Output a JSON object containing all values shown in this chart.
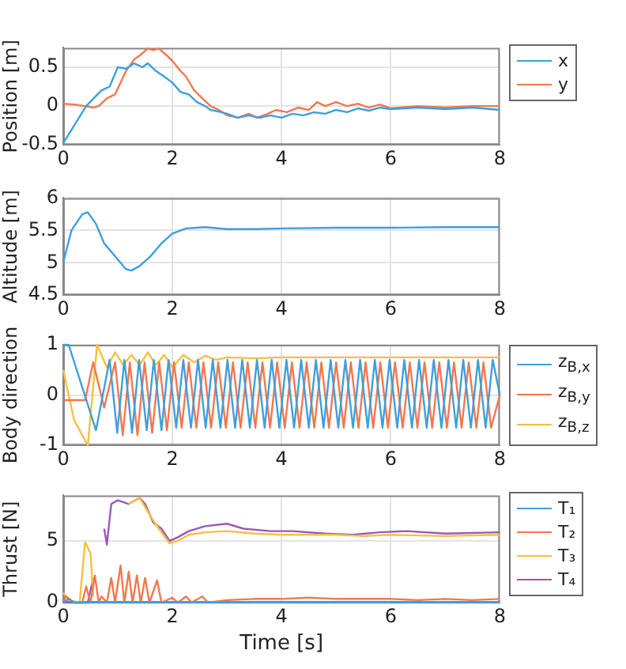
{
  "chart_data": [
    {
      "type": "line",
      "ylabel": "Position [m]",
      "xlim": [
        0,
        8
      ],
      "xticks": [
        0,
        2,
        4,
        6,
        8
      ],
      "ylim": [
        -0.5,
        0.75
      ],
      "yticks": [
        -0.5,
        0,
        0.5
      ],
      "grid": true,
      "legend": "right",
      "series": [
        {
          "name": "x",
          "color": "#3f9fdc",
          "x": [
            0,
            0.42,
            0.7,
            0.85,
            1.0,
            1.15,
            1.3,
            1.45,
            1.55,
            1.7,
            1.85,
            2.0,
            2.15,
            2.3,
            2.45,
            2.6,
            2.7,
            2.9,
            3.0,
            3.2,
            3.4,
            3.6,
            3.8,
            4.0,
            4.2,
            4.4,
            4.6,
            4.8,
            5.0,
            5.2,
            5.4,
            5.6,
            5.8,
            6.0,
            6.5,
            7.0,
            7.5,
            8.0
          ],
          "values": [
            -0.48,
            0,
            0.2,
            0.25,
            0.5,
            0.48,
            0.55,
            0.5,
            0.55,
            0.45,
            0.38,
            0.3,
            0.18,
            0.15,
            0.05,
            0,
            -0.05,
            -0.08,
            -0.1,
            -0.15,
            -0.12,
            -0.15,
            -0.12,
            -0.15,
            -0.1,
            -0.12,
            -0.08,
            -0.1,
            -0.05,
            -0.08,
            -0.03,
            -0.06,
            -0.02,
            -0.04,
            -0.02,
            -0.04,
            -0.02,
            -0.05
          ]
        },
        {
          "name": "y",
          "color": "#f07850",
          "x": [
            0,
            0.2,
            0.4,
            0.55,
            0.65,
            0.8,
            0.95,
            1.05,
            1.15,
            1.3,
            1.4,
            1.55,
            1.65,
            1.75,
            1.9,
            2.0,
            2.15,
            2.25,
            2.4,
            2.55,
            2.7,
            2.85,
            3.0,
            3.2,
            3.4,
            3.55,
            3.75,
            3.9,
            4.1,
            4.3,
            4.5,
            4.65,
            4.8,
            5.0,
            5.2,
            5.4,
            5.6,
            5.8,
            6.0,
            6.5,
            7.0,
            7.5,
            8.0
          ],
          "values": [
            0.03,
            0.02,
            0,
            -0.02,
            0,
            0.1,
            0.15,
            0.3,
            0.45,
            0.6,
            0.65,
            0.74,
            0.72,
            0.74,
            0.65,
            0.58,
            0.45,
            0.38,
            0.2,
            0.1,
            0,
            -0.05,
            -0.12,
            -0.15,
            -0.1,
            -0.15,
            -0.1,
            -0.05,
            -0.08,
            -0.02,
            -0.05,
            0.05,
            0,
            0.05,
            0,
            0.03,
            -0.02,
            0.02,
            -0.03,
            0,
            -0.02,
            0,
            0
          ]
        }
      ]
    },
    {
      "type": "line",
      "ylabel": "Altitude [m]",
      "xlim": [
        0,
        8
      ],
      "xticks": [
        0,
        2,
        4,
        6,
        8
      ],
      "ylim": [
        4.5,
        6
      ],
      "yticks": [
        4.5,
        5,
        5.5,
        6
      ],
      "grid": true,
      "series": [
        {
          "color": "#3f9fdc",
          "x": [
            0,
            0.15,
            0.35,
            0.45,
            0.6,
            0.75,
            0.95,
            1.15,
            1.25,
            1.4,
            1.6,
            1.8,
            2.0,
            2.25,
            2.6,
            3.0,
            3.5,
            4.0,
            5.0,
            6.0,
            7.0,
            8.0
          ],
          "values": [
            5.0,
            5.5,
            5.75,
            5.78,
            5.6,
            5.3,
            5.1,
            4.9,
            4.88,
            4.95,
            5.1,
            5.3,
            5.45,
            5.53,
            5.55,
            5.52,
            5.52,
            5.53,
            5.54,
            5.54,
            5.55,
            5.55
          ]
        }
      ]
    },
    {
      "type": "line",
      "ylabel": "Body direction",
      "xlim": [
        0,
        8
      ],
      "xticks": [
        0,
        2,
        4,
        6,
        8
      ],
      "ylim": [
        -1,
        1
      ],
      "yticks": [
        -1,
        0,
        1
      ],
      "grid": true,
      "legend": "right",
      "series": [
        {
          "name": "z$_{B,x}$",
          "color": "#3f9fdc",
          "x": [
            0,
            0.1,
            0.6,
            0.85,
            0.99,
            1.12,
            1.26,
            1.39,
            1.53,
            1.66,
            1.8,
            1.93,
            2.07,
            2.2,
            2.34,
            2.47,
            2.61,
            2.74,
            2.88,
            3.01,
            3.15,
            3.28,
            3.42,
            3.55,
            3.69,
            3.82,
            3.96,
            4.09,
            4.23,
            4.36,
            4.5,
            4.63,
            4.77,
            4.9,
            5.04,
            5.17,
            5.31,
            5.44,
            5.58,
            5.71,
            5.85,
            5.98,
            6.12,
            6.25,
            6.39,
            6.52,
            6.66,
            6.79,
            6.93,
            7.06,
            7.2,
            7.33,
            7.47,
            7.6,
            7.74,
            7.87,
            8.0
          ],
          "values": [
            1,
            1,
            -0.7,
            0.7,
            -0.75,
            0.7,
            -0.75,
            0.7,
            -0.7,
            0.7,
            -0.7,
            0.7,
            -0.65,
            0.7,
            -0.65,
            0.7,
            -0.65,
            0.7,
            -0.65,
            0.7,
            -0.65,
            0.7,
            -0.65,
            0.7,
            -0.65,
            0.7,
            -0.65,
            0.7,
            -0.65,
            0.7,
            -0.65,
            0.7,
            -0.65,
            0.7,
            -0.65,
            0.7,
            -0.65,
            0.7,
            -0.65,
            0.7,
            -0.65,
            0.7,
            -0.65,
            0.7,
            -0.65,
            0.7,
            -0.65,
            0.7,
            -0.65,
            0.7,
            -0.65,
            0.7,
            -0.65,
            0.7,
            -0.65,
            0.7,
            0
          ]
        },
        {
          "name": "z$_{B,y}$",
          "color": "#f07850",
          "x": [
            0,
            0.4,
            0.55,
            0.75,
            0.95,
            1.09,
            1.22,
            1.36,
            1.49,
            1.63,
            1.76,
            1.9,
            2.03,
            2.17,
            2.3,
            2.44,
            2.57,
            2.71,
            2.84,
            2.98,
            3.11,
            3.25,
            3.38,
            3.52,
            3.65,
            3.79,
            3.92,
            4.06,
            4.19,
            4.33,
            4.46,
            4.6,
            4.73,
            4.87,
            5.0,
            5.14,
            5.27,
            5.41,
            5.54,
            5.68,
            5.81,
            5.95,
            6.08,
            6.22,
            6.35,
            6.49,
            6.62,
            6.76,
            6.89,
            7.03,
            7.16,
            7.3,
            7.43,
            7.57,
            7.7,
            7.84,
            8.0
          ],
          "values": [
            -0.1,
            -0.1,
            0.65,
            -0.25,
            0.65,
            -0.8,
            0.65,
            -0.8,
            0.65,
            -0.75,
            0.65,
            -0.7,
            0.65,
            -0.65,
            0.65,
            -0.65,
            0.65,
            -0.65,
            0.65,
            -0.65,
            0.65,
            -0.65,
            0.65,
            -0.65,
            0.65,
            -0.65,
            0.65,
            -0.65,
            0.65,
            -0.65,
            0.65,
            -0.65,
            0.65,
            -0.65,
            0.65,
            -0.65,
            0.65,
            -0.65,
            0.65,
            -0.65,
            0.65,
            -0.65,
            0.65,
            -0.65,
            0.65,
            -0.65,
            0.65,
            -0.65,
            0.65,
            -0.65,
            0.65,
            -0.65,
            0.65,
            -0.65,
            0.65,
            -0.65,
            0
          ]
        },
        {
          "name": "z$_{B,z}$",
          "color": "#f5c040",
          "x": [
            0,
            0.2,
            0.45,
            0.62,
            0.8,
            0.95,
            1.1,
            1.25,
            1.4,
            1.55,
            1.7,
            1.85,
            2.0,
            2.2,
            2.4,
            2.6,
            2.8,
            3.0,
            3.5,
            4.0,
            5.0,
            6.0,
            7.0,
            8.0
          ],
          "values": [
            0.5,
            -0.5,
            -1,
            1,
            0.55,
            0.85,
            0.6,
            0.8,
            0.6,
            0.85,
            0.6,
            0.8,
            0.55,
            0.8,
            0.65,
            0.78,
            0.7,
            0.75,
            0.73,
            0.75,
            0.75,
            0.75,
            0.75,
            0.75
          ]
        }
      ]
    },
    {
      "type": "line",
      "xlabel": "Time [s]",
      "ylabel": "Thrust [N]",
      "xlim": [
        0,
        8
      ],
      "xticks": [
        0,
        2,
        4,
        6,
        8
      ],
      "ylim": [
        0,
        8.7
      ],
      "yticks": [
        0,
        5
      ],
      "grid": true,
      "legend": "right",
      "series": [
        {
          "name": "T₁",
          "color": "#3f9fdc",
          "x": [
            0,
            0.1,
            0.2,
            8.0
          ],
          "values": [
            0,
            0.3,
            0,
            0
          ]
        },
        {
          "name": "T₂",
          "color": "#f07850",
          "x": [
            0,
            0.05,
            0.2,
            0.35,
            0.42,
            0.5,
            0.58,
            0.65,
            0.7,
            0.8,
            0.88,
            0.95,
            1.05,
            1.12,
            1.2,
            1.27,
            1.35,
            1.42,
            1.5,
            1.58,
            1.72,
            1.8,
            2.0,
            2.1,
            2.25,
            2.35,
            2.55,
            2.65,
            3.0,
            3.5,
            4.0,
            4.5,
            5.0,
            5.5,
            6.0,
            6.5,
            7.0,
            7.5,
            8.0
          ],
          "values": [
            0,
            0.5,
            0,
            0,
            1.3,
            0,
            2.2,
            0,
            0.5,
            0,
            2,
            0,
            3,
            0,
            2.5,
            0,
            2.2,
            0,
            2,
            0,
            1.8,
            0,
            0.4,
            0,
            0.5,
            0,
            0.5,
            0,
            0.2,
            0.3,
            0.3,
            0.4,
            0.3,
            0.3,
            0.3,
            0.2,
            0.3,
            0.2,
            0.3
          ]
        },
        {
          "name": "T₃",
          "color": "#f5c040",
          "x": [
            0,
            0.1,
            0.3,
            0.4,
            0.5,
            0.55,
            0.65,
            0.9,
            1.1,
            1.2,
            1.4,
            1.6,
            1.75,
            1.95,
            2.1,
            2.3,
            2.6,
            3.0,
            3.5,
            4.0,
            5.0,
            5.5,
            6.0,
            7.0,
            8.0
          ],
          "values": [
            0.8,
            0.2,
            0,
            4.9,
            4,
            0.5,
            null,
            null,
            null,
            8,
            8.5,
            7,
            6,
            4.8,
            5,
            5.5,
            5.7,
            5.8,
            5.6,
            5.5,
            5.5,
            5.4,
            5.5,
            5.4,
            5.5
          ]
        },
        {
          "name": "T₄",
          "color": "#9b59b6",
          "x": [
            0,
            0.45,
            0.55,
            0.62,
            0.75,
            0.8,
            0.88,
            1.0,
            1.2,
            1.4,
            1.5,
            1.65,
            1.8,
            1.95,
            2.1,
            2.3,
            2.6,
            3.0,
            3.3,
            3.8,
            4.2,
            4.8,
            5.3,
            5.8,
            6.3,
            7.0,
            8.0
          ],
          "values": [
            0,
            0,
            2,
            null,
            6,
            4.7,
            8,
            8.3,
            8,
            8.5,
            8,
            6.5,
            6,
            5,
            5.3,
            5.8,
            6.2,
            6.4,
            6,
            5.8,
            5.8,
            5.6,
            5.5,
            5.7,
            5.8,
            5.6,
            5.7
          ]
        }
      ]
    }
  ]
}
